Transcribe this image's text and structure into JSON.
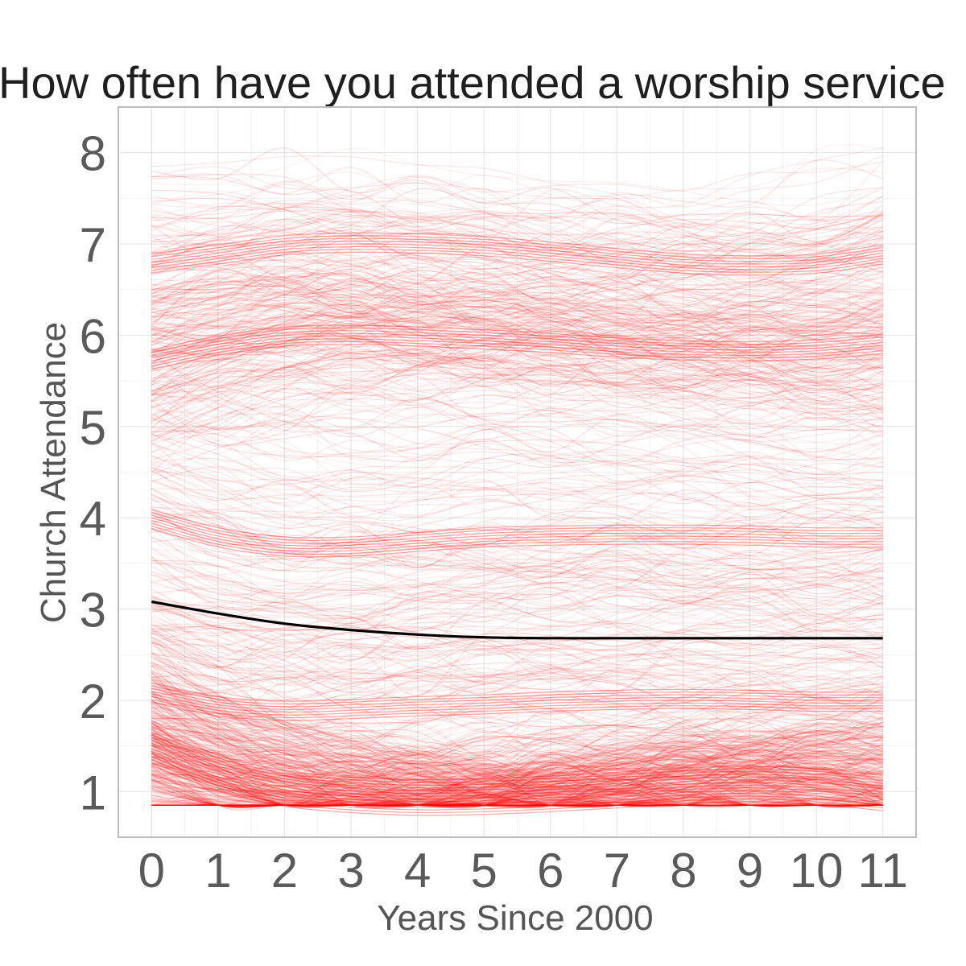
{
  "chart_data": {
    "type": "line",
    "title": "How often have you attended a worship service",
    "xlabel": "Years Since 2000",
    "ylabel": "Church Attendance",
    "x": [
      0,
      1,
      2,
      3,
      4,
      5,
      6,
      7,
      8,
      9,
      10,
      11
    ],
    "x_ticks": [
      "0",
      "1",
      "2",
      "3",
      "4",
      "5",
      "6",
      "7",
      "8",
      "9",
      "10",
      "11"
    ],
    "y_ticks": [
      "1",
      "2",
      "3",
      "4",
      "5",
      "6",
      "7",
      "8"
    ],
    "xlim": [
      -0.5,
      11.5
    ],
    "ylim": [
      0.5,
      8.5
    ],
    "grid": true,
    "legend": "none",
    "series": [
      {
        "role": "mean trajectory",
        "color": "#000000",
        "values": [
          3.08,
          2.95,
          2.84,
          2.77,
          2.72,
          2.69,
          2.68,
          2.68,
          2.68,
          2.68,
          2.68,
          2.68
        ]
      },
      {
        "role": "individual trajectories (clusters)",
        "color": "#ff0000",
        "clusters": [
          {
            "values": [
              1.5,
              1.22,
              1.05,
              0.98,
              0.95,
              0.96,
              0.99,
              1.03,
              1.08,
              1.1,
              1.07,
              1.0
            ]
          },
          {
            "values": [
              5.75,
              5.9,
              6.0,
              6.02,
              6.0,
              5.97,
              5.93,
              5.88,
              5.85,
              5.84,
              5.86,
              5.92
            ]
          },
          {
            "values": [
              6.8,
              6.9,
              7.0,
              7.03,
              7.02,
              6.99,
              6.93,
              6.86,
              6.8,
              6.78,
              6.8,
              6.9
            ]
          },
          {
            "values": [
              2.1,
              1.95,
              1.9,
              1.92,
              1.95,
              1.97,
              2.0,
              2.02,
              2.03,
              2.02,
              2.0,
              2.0
            ]
          },
          {
            "values": [
              4.0,
              3.8,
              3.7,
              3.7,
              3.75,
              3.8,
              3.82,
              3.83,
              3.83,
              3.82,
              3.8,
              3.8
            ]
          }
        ]
      }
    ]
  }
}
